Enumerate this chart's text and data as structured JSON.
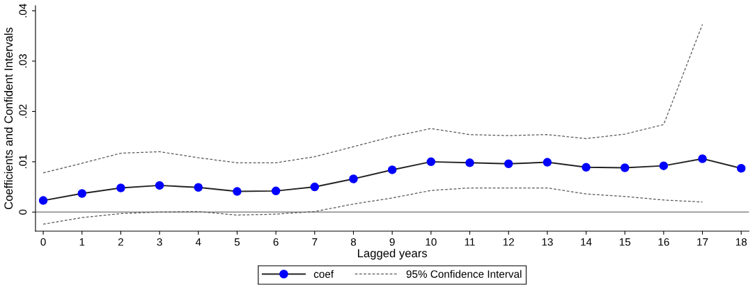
{
  "chart_data": {
    "type": "line",
    "xlabel": "Lagged years",
    "ylabel": "Coefficients and Confident Intervals",
    "x": [
      0,
      1,
      2,
      3,
      4,
      5,
      6,
      7,
      8,
      9,
      10,
      11,
      12,
      13,
      14,
      15,
      16,
      17,
      18
    ],
    "series": [
      {
        "name": "coef",
        "color": "#0000ff",
        "marker": "circle",
        "line_style": "solid",
        "values": [
          0.0023,
          0.0037,
          0.0048,
          0.0053,
          0.0049,
          0.0041,
          0.0042,
          0.005,
          0.0066,
          0.0084,
          0.01,
          0.0098,
          0.0096,
          0.0099,
          0.0089,
          0.0088,
          0.0092,
          0.0106,
          0.0087
        ]
      },
      {
        "name": "95% Confidence Interval",
        "color": "#555555",
        "marker": "none",
        "line_style": "dashed",
        "values": [
          0.0078,
          0.0097,
          0.0117,
          0.012,
          0.0108,
          0.0098,
          0.0098,
          0.011,
          0.013,
          0.015,
          0.0166,
          0.0154,
          0.0152,
          0.0154,
          0.0146,
          0.0155,
          0.0174,
          0.0373,
          null
        ]
      },
      {
        "color": "#555555",
        "marker": "none",
        "line_style": "dashed",
        "values": [
          -0.0024,
          -0.0011,
          -0.0003,
          0.0,
          0.0001,
          -0.0006,
          -0.0004,
          0.0001,
          0.0016,
          0.0028,
          0.0043,
          0.0048,
          0.0048,
          0.0048,
          0.0036,
          0.0031,
          0.0024,
          0.002,
          null
        ]
      }
    ],
    "xlim": [
      -0.2,
      18.2
    ],
    "xticks": [
      0,
      1,
      2,
      3,
      4,
      5,
      6,
      7,
      8,
      9,
      10,
      11,
      12,
      13,
      14,
      15,
      16,
      17,
      18
    ],
    "ylim": [
      -0.0038,
      0.041
    ],
    "yticks": [
      {
        "value": 0,
        "label": "0"
      },
      {
        "value": 0.01,
        "label": ".01"
      },
      {
        "value": 0.02,
        "label": ".02"
      },
      {
        "value": 0.03,
        "label": ".03"
      },
      {
        "value": 0.04,
        "label": ".04"
      }
    ],
    "ref_lines": [
      {
        "axis": "y",
        "value": 0,
        "color": "#888888",
        "line_style": "solid"
      }
    ],
    "grid": false,
    "legend": "bottom"
  }
}
